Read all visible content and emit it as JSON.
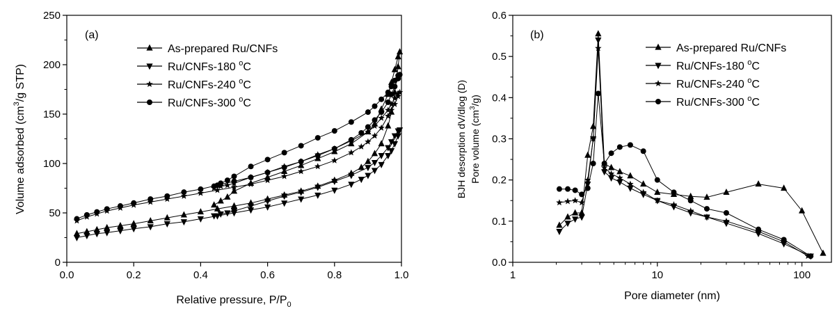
{
  "chart_data": [
    {
      "type": "line",
      "panel_label": "(a)",
      "xlabel": "Relative pressure, P/P",
      "xlabel_sub": "0",
      "ylabel_pre": "Volume adsorbed (cm",
      "ylabel_sup": "3",
      "ylabel_post": "/g STP)",
      "xlim": [
        0.0,
        1.0
      ],
      "ylim": [
        0,
        250
      ],
      "xticks": [
        0.0,
        0.2,
        0.4,
        0.6,
        0.8,
        1.0
      ],
      "xtick_labels": [
        "0.0",
        "0.2",
        "0.4",
        "0.6",
        "0.8",
        "1.0"
      ],
      "yticks": [
        0,
        50,
        100,
        150,
        200,
        250
      ],
      "ytick_labels": [
        "0",
        "50",
        "100",
        "150",
        "200",
        "250"
      ],
      "legend_position": "top-center",
      "series": [
        {
          "name_pre": "As-prepared Ru/CNFs",
          "name_deg": "",
          "name_post": "",
          "marker": "triangle-up",
          "x": [
            0.03,
            0.06,
            0.09,
            0.12,
            0.16,
            0.2,
            0.25,
            0.3,
            0.35,
            0.4,
            0.45,
            0.5,
            0.55,
            0.6,
            0.65,
            0.7,
            0.75,
            0.8,
            0.85,
            0.88,
            0.9,
            0.92,
            0.94,
            0.96,
            0.97,
            0.98,
            0.99,
            0.995,
            0.99,
            0.98,
            0.97,
            0.96,
            0.94,
            0.92,
            0.9,
            0.85,
            0.8,
            0.75,
            0.7,
            0.65,
            0.6,
            0.55,
            0.5,
            0.48,
            0.46,
            0.44
          ],
          "y": [
            29,
            31,
            33,
            35,
            37,
            39,
            42,
            45,
            48,
            51,
            54,
            57,
            60,
            64,
            68,
            72,
            77,
            83,
            90,
            96,
            102,
            110,
            120,
            138,
            152,
            172,
            198,
            213,
            208,
            195,
            182,
            170,
            155,
            140,
            132,
            120,
            112,
            105,
            98,
            92,
            86,
            80,
            72,
            66,
            62,
            58
          ]
        },
        {
          "name_pre": "Ru/CNFs-180 ",
          "name_deg": "o",
          "name_post": "C",
          "marker": "triangle-down",
          "x": [
            0.03,
            0.06,
            0.09,
            0.12,
            0.16,
            0.2,
            0.25,
            0.3,
            0.35,
            0.4,
            0.45,
            0.5,
            0.55,
            0.6,
            0.65,
            0.7,
            0.75,
            0.8,
            0.85,
            0.88,
            0.9,
            0.92,
            0.94,
            0.96,
            0.97,
            0.98,
            0.99,
            0.995,
            0.99,
            0.98,
            0.97,
            0.96,
            0.94,
            0.92,
            0.9,
            0.85,
            0.8,
            0.75,
            0.7,
            0.65,
            0.6,
            0.55,
            0.5,
            0.48,
            0.46,
            0.44
          ],
          "y": [
            25,
            27,
            29,
            30,
            32,
            34,
            36,
            39,
            41,
            44,
            47,
            50,
            53,
            56,
            60,
            64,
            68,
            73,
            79,
            84,
            88,
            93,
            99,
            108,
            113,
            120,
            128,
            134,
            133,
            128,
            122,
            116,
            108,
            101,
            96,
            88,
            82,
            76,
            71,
            67,
            62,
            57,
            52,
            50,
            49,
            47
          ]
        },
        {
          "name_pre": "Ru/CNFs-240 ",
          "name_deg": "o",
          "name_post": "C",
          "marker": "star",
          "x": [
            0.03,
            0.06,
            0.09,
            0.12,
            0.16,
            0.2,
            0.25,
            0.3,
            0.35,
            0.4,
            0.45,
            0.5,
            0.55,
            0.6,
            0.65,
            0.7,
            0.75,
            0.8,
            0.85,
            0.88,
            0.9,
            0.92,
            0.94,
            0.96,
            0.97,
            0.98,
            0.99,
            0.995,
            0.99,
            0.98,
            0.97,
            0.96,
            0.94,
            0.92,
            0.9,
            0.85,
            0.8,
            0.75,
            0.7,
            0.65,
            0.6,
            0.55,
            0.5,
            0.48,
            0.46,
            0.44
          ],
          "y": [
            42,
            46,
            49,
            52,
            55,
            58,
            61,
            64,
            67,
            70,
            73,
            76,
            79,
            83,
            87,
            92,
            97,
            103,
            111,
            117,
            122,
            128,
            136,
            148,
            154,
            160,
            168,
            172,
            171,
            166,
            160,
            154,
            146,
            138,
            132,
            123,
            115,
            109,
            102,
            97,
            91,
            86,
            80,
            78,
            77,
            75
          ]
        },
        {
          "name_pre": "Ru/CNFs-300 ",
          "name_deg": "o",
          "name_post": "C",
          "marker": "circle",
          "x": [
            0.03,
            0.06,
            0.09,
            0.12,
            0.16,
            0.2,
            0.25,
            0.3,
            0.35,
            0.4,
            0.45,
            0.5,
            0.55,
            0.6,
            0.65,
            0.7,
            0.75,
            0.8,
            0.85,
            0.88,
            0.9,
            0.92,
            0.94,
            0.96,
            0.97,
            0.98,
            0.99,
            0.995,
            0.99,
            0.98,
            0.97,
            0.96,
            0.94,
            0.92,
            0.9,
            0.85,
            0.8,
            0.75,
            0.7,
            0.65,
            0.6,
            0.55,
            0.5,
            0.48,
            0.46,
            0.44
          ],
          "y": [
            44,
            48,
            51,
            54,
            57,
            60,
            64,
            67,
            71,
            74,
            78,
            82,
            86,
            91,
            96,
            102,
            108,
            115,
            124,
            131,
            137,
            144,
            152,
            162,
            170,
            178,
            186,
            190,
            189,
            184,
            178,
            172,
            165,
            158,
            152,
            142,
            133,
            126,
            118,
            111,
            104,
            97,
            87,
            83,
            80,
            77
          ]
        }
      ]
    },
    {
      "type": "line",
      "panel_label": "(b)",
      "xlabel": "Pore diameter (nm)",
      "ylabel_line1": "BJH desorption dV/dlog (D)",
      "ylabel_pre": "Pore volume (cm",
      "ylabel_sup": "3",
      "ylabel_post": "/g)",
      "xscale": "log",
      "xlim": [
        1,
        160
      ],
      "ylim": [
        0.0,
        0.6
      ],
      "xticks": [
        1,
        10,
        100
      ],
      "xtick_labels": [
        "1",
        "10",
        "100"
      ],
      "yticks": [
        0.0,
        0.1,
        0.2,
        0.3,
        0.4,
        0.5,
        0.6
      ],
      "ytick_labels": [
        "0.0",
        "0.1",
        "0.2",
        "0.3",
        "0.4",
        "0.5",
        "0.6"
      ],
      "legend_position": "top-right",
      "series": [
        {
          "name_pre": "As-prepared Ru/CNFs",
          "name_deg": "",
          "name_post": "",
          "marker": "triangle-up",
          "x": [
            2.1,
            2.4,
            2.7,
            3.0,
            3.3,
            3.6,
            3.9,
            4.3,
            4.8,
            5.5,
            6.5,
            8,
            10,
            13,
            17,
            22,
            30,
            50,
            75,
            100,
            140
          ],
          "y": [
            0.09,
            0.11,
            0.12,
            0.12,
            0.26,
            0.33,
            0.555,
            0.24,
            0.23,
            0.22,
            0.21,
            0.19,
            0.17,
            0.165,
            0.16,
            0.158,
            0.17,
            0.19,
            0.18,
            0.125,
            0.022
          ]
        },
        {
          "name_pre": "Ru/CNFs-180 ",
          "name_deg": "o",
          "name_post": "C",
          "marker": "triangle-down",
          "x": [
            2.1,
            2.4,
            2.7,
            3.0,
            3.3,
            3.6,
            3.9,
            4.3,
            4.8,
            5.5,
            6.5,
            8,
            10,
            13,
            17,
            22,
            30,
            50,
            75,
            115
          ],
          "y": [
            0.075,
            0.095,
            0.105,
            0.11,
            0.19,
            0.3,
            0.54,
            0.22,
            0.205,
            0.195,
            0.18,
            0.165,
            0.15,
            0.135,
            0.12,
            0.11,
            0.095,
            0.07,
            0.045,
            0.015
          ]
        },
        {
          "name_pre": "Ru/CNFs-240 ",
          "name_deg": "o",
          "name_post": "C",
          "marker": "star",
          "x": [
            2.1,
            2.4,
            2.7,
            3.0,
            3.3,
            3.6,
            3.9,
            4.3,
            4.8,
            5.5,
            6.5,
            8,
            10,
            13,
            17,
            22,
            30,
            50,
            75,
            110
          ],
          "y": [
            0.145,
            0.148,
            0.15,
            0.145,
            0.2,
            0.3,
            0.52,
            0.23,
            0.215,
            0.205,
            0.19,
            0.17,
            0.15,
            0.14,
            0.125,
            0.11,
            0.1,
            0.075,
            0.05,
            0.015
          ]
        },
        {
          "name_pre": "Ru/CNFs-300 ",
          "name_deg": "o",
          "name_post": "C",
          "marker": "circle",
          "x": [
            2.1,
            2.4,
            2.7,
            3.0,
            3.3,
            3.6,
            3.9,
            4.3,
            4.8,
            5.5,
            6.5,
            8,
            10,
            13,
            17,
            22,
            30,
            50,
            75,
            115
          ],
          "y": [
            0.178,
            0.178,
            0.175,
            0.165,
            0.18,
            0.24,
            0.41,
            0.24,
            0.265,
            0.28,
            0.285,
            0.27,
            0.2,
            0.17,
            0.15,
            0.13,
            0.12,
            0.08,
            0.055,
            0.015
          ]
        }
      ]
    }
  ]
}
